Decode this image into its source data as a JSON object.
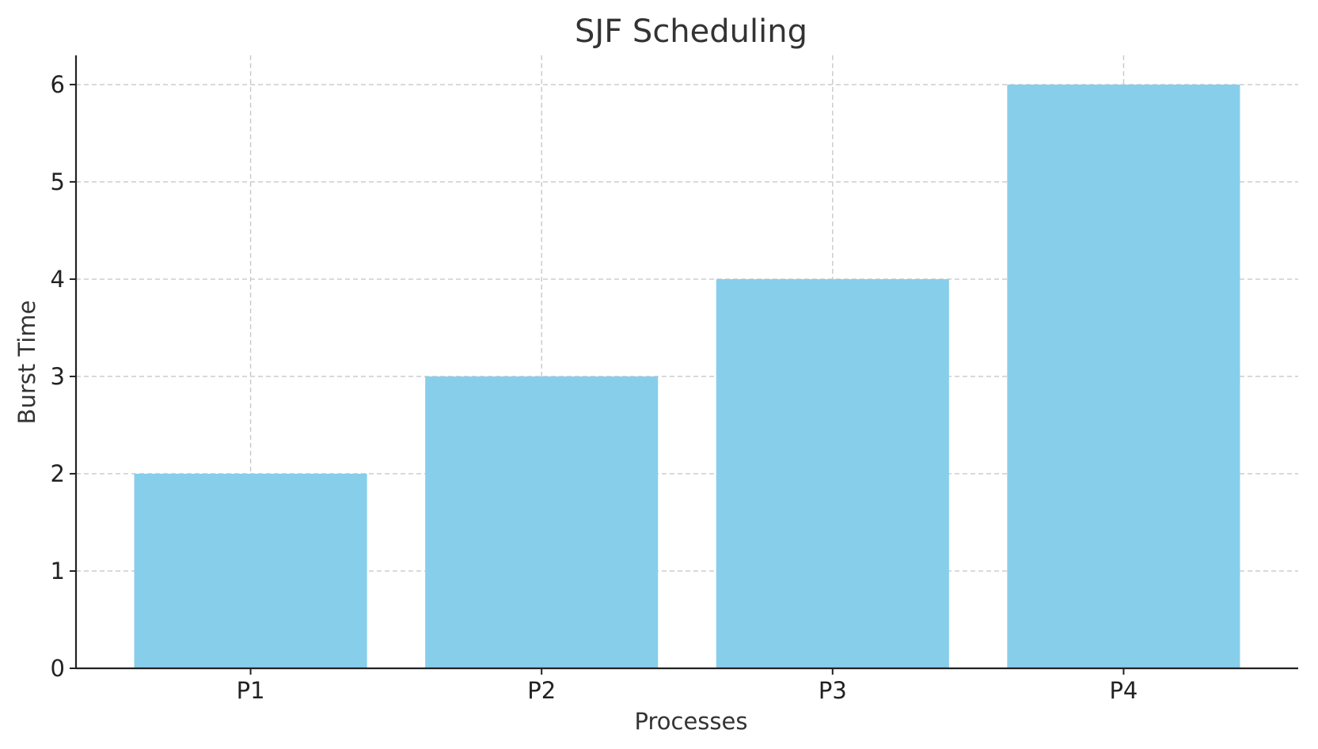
{
  "chart_data": {
    "type": "bar",
    "title": "SJF Scheduling",
    "xlabel": "Processes",
    "ylabel": "Burst Time",
    "categories": [
      "P1",
      "P2",
      "P3",
      "P4"
    ],
    "values": [
      2,
      3,
      4,
      6
    ],
    "ylim": [
      0,
      6.3
    ],
    "yticks": [
      0,
      1,
      2,
      3,
      4,
      5,
      6
    ],
    "grid": true,
    "bar_color": "#87CEEB"
  }
}
